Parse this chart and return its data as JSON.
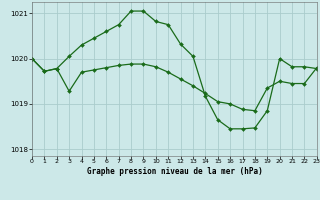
{
  "title": "Graphe pression niveau de la mer (hPa)",
  "bg_color": "#cce8e8",
  "grid_color": "#aacccc",
  "line_color": "#1a6b1a",
  "xlim": [
    0,
    23
  ],
  "ylim": [
    1017.85,
    1021.25
  ],
  "yticks": [
    1018,
    1019,
    1020,
    1021
  ],
  "xticks": [
    0,
    1,
    2,
    3,
    4,
    5,
    6,
    7,
    8,
    9,
    10,
    11,
    12,
    13,
    14,
    15,
    16,
    17,
    18,
    19,
    20,
    21,
    22,
    23
  ],
  "series1_x": [
    0,
    1,
    2,
    3,
    4,
    5,
    6,
    7,
    8,
    9,
    10,
    11,
    12,
    13,
    14,
    15,
    16,
    17,
    18,
    19,
    20,
    21,
    22,
    23
  ],
  "series1_y": [
    1020.0,
    1019.72,
    1019.78,
    1020.05,
    1020.3,
    1020.45,
    1020.6,
    1020.75,
    1021.05,
    1021.05,
    1020.82,
    1020.75,
    1020.32,
    1020.05,
    1019.17,
    1018.65,
    1018.45,
    1018.45,
    1018.47,
    1018.85,
    1020.0,
    1019.82,
    1019.82,
    1019.78
  ],
  "series2_x": [
    0,
    1,
    2,
    3,
    4,
    5,
    6,
    7,
    8,
    9,
    10,
    11,
    12,
    13,
    14,
    15,
    16,
    17,
    18,
    19,
    20,
    21,
    22,
    23
  ],
  "series2_y": [
    1020.0,
    1019.72,
    1019.78,
    1019.28,
    1019.7,
    1019.75,
    1019.8,
    1019.85,
    1019.88,
    1019.88,
    1019.82,
    1019.7,
    1019.55,
    1019.4,
    1019.23,
    1019.05,
    1019.0,
    1018.88,
    1018.85,
    1019.35,
    1019.5,
    1019.45,
    1019.45,
    1019.8
  ]
}
